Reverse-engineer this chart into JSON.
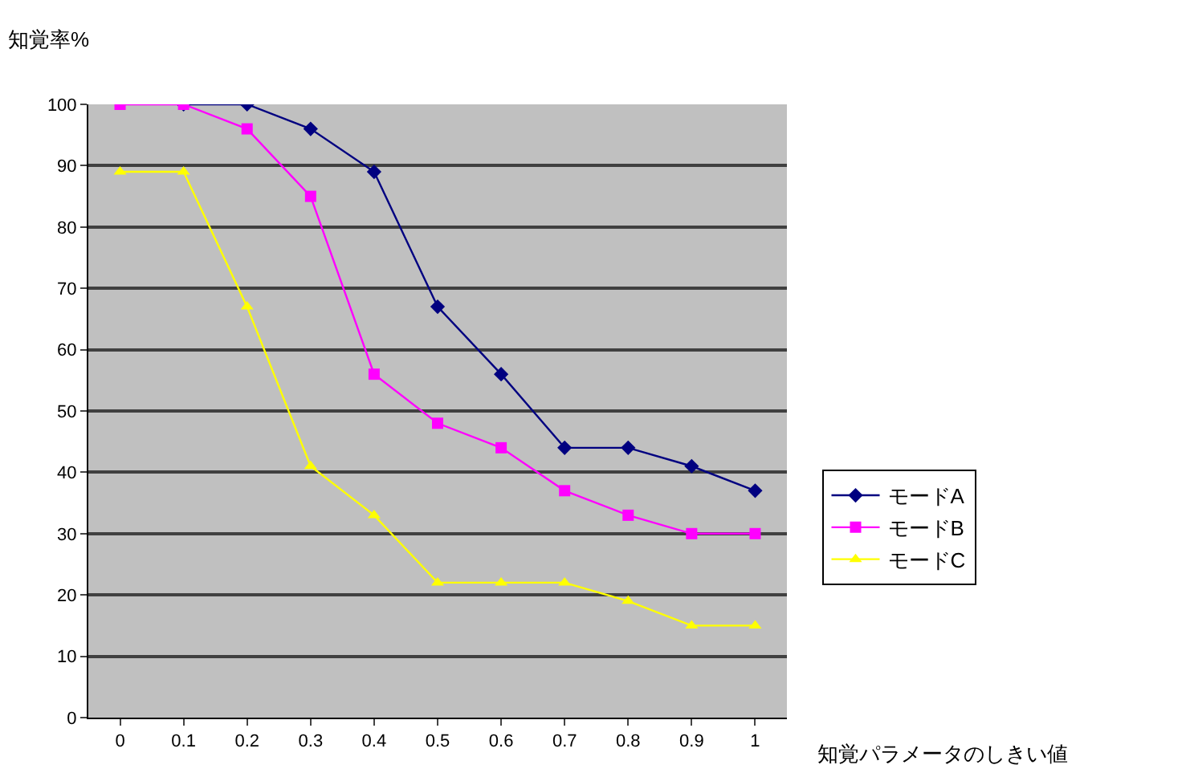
{
  "chart_data": {
    "type": "line",
    "xlabel": "知覚パラメータのしきい値",
    "ylabel": "知覚率%",
    "categories": [
      "0",
      "0.1",
      "0.2",
      "0.3",
      "0.4",
      "0.5",
      "0.6",
      "0.7",
      "0.8",
      "0.9",
      "1"
    ],
    "series": [
      {
        "name": "モードA",
        "color": "#000080",
        "marker": "diamond",
        "values": [
          null,
          100,
          100,
          96,
          89,
          67,
          56,
          44,
          44,
          41,
          37
        ]
      },
      {
        "name": "モードB",
        "color": "#ff00ff",
        "marker": "square",
        "values": [
          100,
          100,
          96,
          85,
          56,
          48,
          44,
          37,
          33,
          30,
          30
        ]
      },
      {
        "name": "モードC",
        "color": "#ffff00",
        "marker": "triangle",
        "values": [
          89,
          89,
          67,
          41,
          33,
          22,
          22,
          22,
          19,
          15,
          15
        ]
      }
    ],
    "ylim": [
      0,
      100
    ],
    "yticks": [
      0,
      10,
      20,
      30,
      40,
      50,
      60,
      70,
      80,
      90,
      100
    ],
    "grid": "y",
    "legend": "right"
  }
}
